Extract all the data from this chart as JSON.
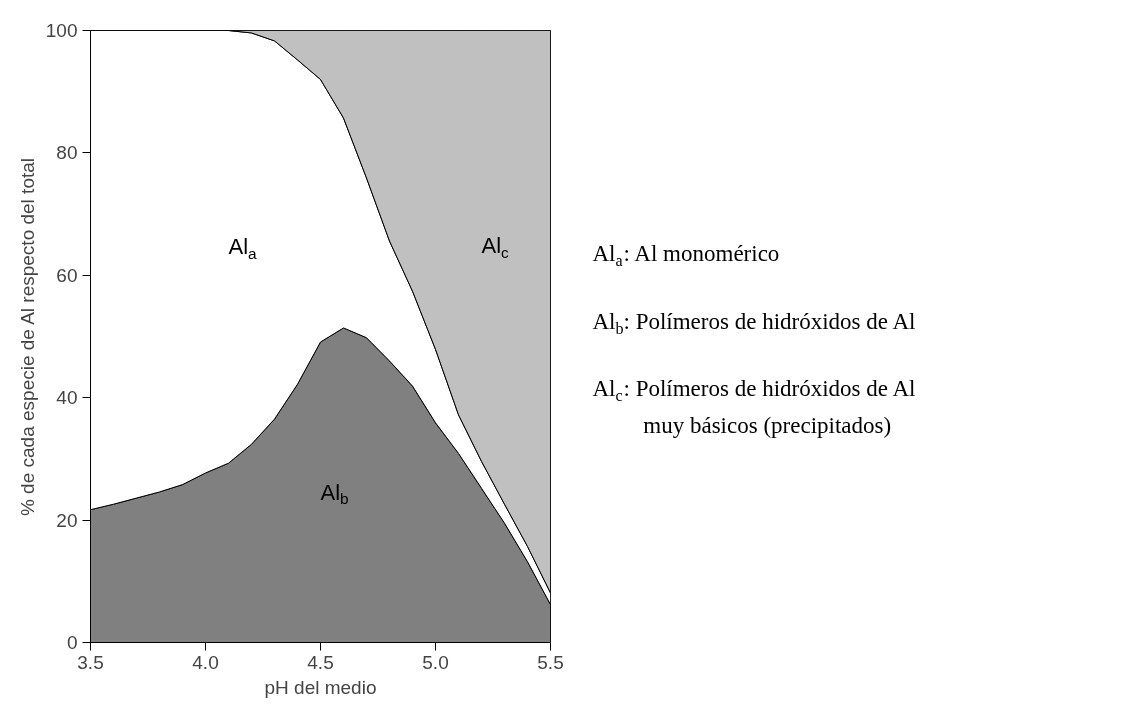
{
  "chart_data": {
    "type": "area",
    "stacked": true,
    "xlabel": "pH del medio",
    "ylabel": "% de cada especie de Al respecto del total",
    "x": [
      3.5,
      3.6,
      3.7,
      3.8,
      3.9,
      4.0,
      4.1,
      4.2,
      4.3,
      4.4,
      4.5,
      4.6,
      4.7,
      4.8,
      4.9,
      5.0,
      5.1,
      5.2,
      5.3,
      5.4,
      5.5
    ],
    "series": [
      {
        "name": "Al$_{b}$",
        "color": "#808080",
        "values": [
          21.7,
          22.6,
          23.6,
          24.6,
          25.8,
          27.7,
          29.3,
          32.4,
          36.5,
          42.2,
          49.1,
          51.4,
          49.8,
          46.0,
          41.9,
          35.9,
          30.9,
          25.2,
          19.5,
          13.2,
          6.2
        ]
      },
      {
        "name": "Al$_{a}$",
        "color": "#ffffff",
        "values": [
          78.3,
          77.4,
          76.4,
          75.4,
          74.2,
          72.3,
          70.7,
          67.2,
          61.8,
          53.0,
          42.9,
          34.3,
          26.1,
          19.6,
          15.5,
          12.0,
          6.3,
          4.4,
          3.1,
          2.5,
          1.9
        ]
      },
      {
        "name": "Al$_{c}$",
        "color": "#c0c0c0",
        "values": [
          0,
          0,
          0,
          0,
          0,
          0,
          0,
          0.4,
          1.7,
          4.8,
          8.0,
          14.3,
          24.1,
          34.4,
          42.6,
          52.1,
          62.8,
          70.4,
          77.4,
          84.3,
          91.9
        ]
      }
    ],
    "xlim": [
      3.5,
      5.5
    ],
    "xticks": [
      3.5,
      {
        "value": 4,
        "label": "4.0"
      },
      4.5,
      {
        "value": 5,
        "label": "5.0"
      },
      5.5
    ],
    "ylim": [
      0,
      100
    ],
    "yticks": [
      0,
      20,
      40,
      60,
      80,
      100
    ],
    "grid": false,
    "annotations": [
      "Al$_{a}$: Al monomérico",
      "Al$_{b}$: Polímeros de hidróxidos de Al",
      "Al$_{c}$: Polímeros de hidróxidos de Al\nmuy básicos (precipitados)"
    ]
  }
}
